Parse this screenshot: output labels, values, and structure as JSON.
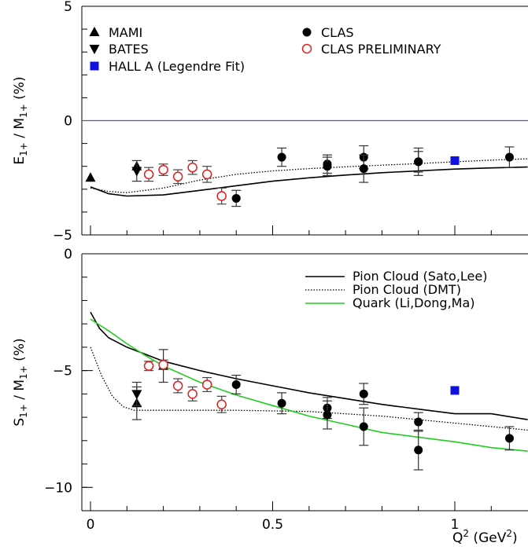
{
  "chart_data": [
    {
      "type": "scatter",
      "ylabel": "E1+ / M1+ (%)",
      "ylabel_parts": {
        "a": "E",
        "a_sub": "1+",
        "mid": " / M",
        "b_sub": "1+",
        "unit": " (%)"
      },
      "ylim": [
        -5,
        5
      ],
      "xlim": [
        0,
        1.2
      ],
      "yticks": [
        5,
        0,
        -5
      ],
      "ytick_labels": [
        "5",
        "0",
        "−5"
      ],
      "zero_line": true,
      "legend": [
        {
          "label": "MAMI",
          "marker": "triangle-up",
          "color": "#000000"
        },
        {
          "label": "BATES",
          "marker": "triangle-down",
          "color": "#000000"
        },
        {
          "label": "HALL A (Legendre Fit)",
          "marker": "square",
          "color": "#1010e0"
        },
        {
          "label": "CLAS",
          "marker": "circle",
          "color": "#000000"
        },
        {
          "label": "CLAS PRELIMINARY",
          "marker": "open-circle",
          "color": "#dd2020"
        }
      ],
      "series": [
        {
          "name": "MAMI",
          "marker": "triangle-up",
          "color": "#000000",
          "points": [
            {
              "x": 0.0,
              "y": -2.5,
              "err": 0
            },
            {
              "x": 0.127,
              "y": -2.0,
              "err": 0
            }
          ]
        },
        {
          "name": "BATES",
          "marker": "triangle-down",
          "color": "#000000",
          "points": [
            {
              "x": 0.127,
              "y": -2.2,
              "err": 0.45
            }
          ]
        },
        {
          "name": "HALL A (Legendre Fit)",
          "marker": "square",
          "color": "#1010e0",
          "points": [
            {
              "x": 1.0,
              "y": -1.75,
              "err": 0
            }
          ]
        },
        {
          "name": "CLAS",
          "marker": "circle",
          "color": "#000000",
          "points": [
            {
              "x": 0.4,
              "y": -3.4,
              "err": 0.35
            },
            {
              "x": 0.525,
              "y": -1.6,
              "err": 0.4
            },
            {
              "x": 0.65,
              "y": -1.9,
              "err": 0.4
            },
            {
              "x": 0.65,
              "y": -2.0,
              "err": 0.4
            },
            {
              "x": 0.75,
              "y": -1.6,
              "err": 0.5
            },
            {
              "x": 0.75,
              "y": -2.1,
              "err": 0.6
            },
            {
              "x": 0.9,
              "y": -1.8,
              "err": 0.6
            },
            {
              "x": 0.9,
              "y": -1.8,
              "err": 0.45
            },
            {
              "x": 1.15,
              "y": -1.6,
              "err": 0.45
            }
          ]
        },
        {
          "name": "CLAS PRELIMINARY",
          "marker": "open-circle",
          "color": "#dd2020",
          "points": [
            {
              "x": 0.16,
              "y": -2.35,
              "err": 0.3
            },
            {
              "x": 0.2,
              "y": -2.15,
              "err": 0.25
            },
            {
              "x": 0.24,
              "y": -2.45,
              "err": 0.3
            },
            {
              "x": 0.28,
              "y": -2.05,
              "err": 0.3
            },
            {
              "x": 0.32,
              "y": -2.35,
              "err": 0.35
            },
            {
              "x": 0.36,
              "y": -3.3,
              "err": 0.35
            }
          ]
        }
      ],
      "curves": [
        {
          "style": "solid",
          "color": "#000000",
          "points": [
            [
              0,
              -2.9
            ],
            [
              0.05,
              -3.2
            ],
            [
              0.1,
              -3.3
            ],
            [
              0.2,
              -3.25
            ],
            [
              0.3,
              -3.05
            ],
            [
              0.4,
              -2.85
            ],
            [
              0.5,
              -2.65
            ],
            [
              0.6,
              -2.5
            ],
            [
              0.7,
              -2.38
            ],
            [
              0.8,
              -2.28
            ],
            [
              0.9,
              -2.2
            ],
            [
              1.0,
              -2.12
            ],
            [
              1.1,
              -2.07
            ],
            [
              1.2,
              -2.03
            ]
          ]
        },
        {
          "style": "dotted",
          "color": "#000000",
          "points": [
            [
              0,
              -2.95
            ],
            [
              0.05,
              -3.1
            ],
            [
              0.1,
              -3.15
            ],
            [
              0.2,
              -2.95
            ],
            [
              0.3,
              -2.6
            ],
            [
              0.4,
              -2.35
            ],
            [
              0.5,
              -2.2
            ],
            [
              0.6,
              -2.1
            ],
            [
              0.7,
              -2.02
            ],
            [
              0.8,
              -1.95
            ],
            [
              0.9,
              -1.88
            ],
            [
              1.0,
              -1.8
            ],
            [
              1.1,
              -1.73
            ],
            [
              1.2,
              -1.67
            ]
          ]
        }
      ]
    },
    {
      "type": "scatter",
      "ylabel": "S1+ / M1+ (%)",
      "ylabel_parts": {
        "a": "S",
        "a_sub": "1+",
        "mid": " / M",
        "b_sub": "1+",
        "unit": " (%)"
      },
      "xlabel": "Q2 (GeV2)",
      "xlabel_parts": {
        "a": "Q",
        "a_sup": "2",
        "mid": " (GeV",
        "b_sup": "2",
        "end": ")"
      },
      "ylim": [
        -11,
        0
      ],
      "xlim": [
        -0.025,
        1.2
      ],
      "yticks": [
        0,
        -5,
        -10
      ],
      "ytick_labels": [
        "0",
        "−5",
        "−10"
      ],
      "xticks": [
        0,
        0.5,
        1
      ],
      "xtick_labels": [
        "0",
        "0.5",
        "1"
      ],
      "legend": [
        {
          "label": "Pion Cloud (Sato,Lee)",
          "style": "solid",
          "color": "#000000"
        },
        {
          "label": "Pion Cloud (DMT)",
          "style": "dotted",
          "color": "#000000"
        },
        {
          "label": "Quark (Li,Dong,Ma)",
          "style": "solid",
          "color": "#22cc22"
        }
      ],
      "series": [
        {
          "name": "MAMI",
          "marker": "triangle-up",
          "color": "#000000",
          "points": [
            {
              "x": 0.127,
              "y": -6.4,
              "err": 0.7
            },
            {
              "x": 0.2,
              "y": -4.8,
              "err": 0.7
            }
          ]
        },
        {
          "name": "BATES",
          "marker": "triangle-down",
          "color": "#000000",
          "points": [
            {
              "x": 0.127,
              "y": -6.0,
              "err": 0.5
            }
          ]
        },
        {
          "name": "HALL A (Legendre Fit)",
          "marker": "square",
          "color": "#1010e0",
          "points": [
            {
              "x": 1.0,
              "y": -5.85,
              "err": 0
            }
          ]
        },
        {
          "name": "CLAS",
          "marker": "circle",
          "color": "#000000",
          "points": [
            {
              "x": 0.4,
              "y": -5.6,
              "err": 0.4
            },
            {
              "x": 0.525,
              "y": -6.4,
              "err": 0.45
            },
            {
              "x": 0.65,
              "y": -6.6,
              "err": 0.45
            },
            {
              "x": 0.65,
              "y": -6.9,
              "err": 0.6
            },
            {
              "x": 0.75,
              "y": -6.0,
              "err": 0.45
            },
            {
              "x": 0.75,
              "y": -7.4,
              "err": 0.8
            },
            {
              "x": 0.9,
              "y": -7.2,
              "err": 0.4
            },
            {
              "x": 0.9,
              "y": -8.4,
              "err": 0.85
            },
            {
              "x": 1.15,
              "y": -7.9,
              "err": 0.5
            }
          ]
        },
        {
          "name": "CLAS PRELIMINARY",
          "marker": "open-circle",
          "color": "#dd2020",
          "points": [
            {
              "x": 0.16,
              "y": -4.8,
              "err": 0.2
            },
            {
              "x": 0.2,
              "y": -4.75,
              "err": 0.2
            },
            {
              "x": 0.24,
              "y": -5.65,
              "err": 0.3
            },
            {
              "x": 0.28,
              "y": -6.0,
              "err": 0.3
            },
            {
              "x": 0.32,
              "y": -5.6,
              "err": 0.3
            },
            {
              "x": 0.36,
              "y": -6.45,
              "err": 0.35
            }
          ]
        }
      ],
      "curves": [
        {
          "style": "solid",
          "color": "#000000",
          "points": [
            [
              0,
              -2.5
            ],
            [
              0.025,
              -3.2
            ],
            [
              0.05,
              -3.6
            ],
            [
              0.1,
              -4.0
            ],
            [
              0.15,
              -4.3
            ],
            [
              0.2,
              -4.6
            ],
            [
              0.3,
              -5.0
            ],
            [
              0.4,
              -5.35
            ],
            [
              0.5,
              -5.65
            ],
            [
              0.6,
              -5.95
            ],
            [
              0.7,
              -6.2
            ],
            [
              0.8,
              -6.45
            ],
            [
              0.9,
              -6.65
            ],
            [
              1.0,
              -6.85
            ],
            [
              1.1,
              -6.85
            ],
            [
              1.2,
              -7.1
            ]
          ]
        },
        {
          "style": "dotted",
          "color": "#000000",
          "points": [
            [
              0,
              -4.0
            ],
            [
              0.03,
              -5.2
            ],
            [
              0.06,
              -6.1
            ],
            [
              0.09,
              -6.55
            ],
            [
              0.12,
              -6.7
            ],
            [
              0.2,
              -6.7
            ],
            [
              0.4,
              -6.7
            ],
            [
              0.6,
              -6.75
            ],
            [
              0.8,
              -6.95
            ],
            [
              1.0,
              -7.25
            ],
            [
              1.2,
              -7.55
            ]
          ]
        },
        {
          "style": "solid",
          "color": "#22cc22",
          "points": [
            [
              0,
              -2.8
            ],
            [
              0.05,
              -3.3
            ],
            [
              0.1,
              -3.85
            ],
            [
              0.15,
              -4.35
            ],
            [
              0.2,
              -4.8
            ],
            [
              0.3,
              -5.5
            ],
            [
              0.4,
              -6.05
            ],
            [
              0.5,
              -6.5
            ],
            [
              0.6,
              -6.95
            ],
            [
              0.7,
              -7.3
            ],
            [
              0.8,
              -7.65
            ],
            [
              0.9,
              -7.85
            ],
            [
              1.0,
              -8.05
            ],
            [
              1.1,
              -8.3
            ],
            [
              1.2,
              -8.45
            ]
          ]
        }
      ]
    }
  ]
}
